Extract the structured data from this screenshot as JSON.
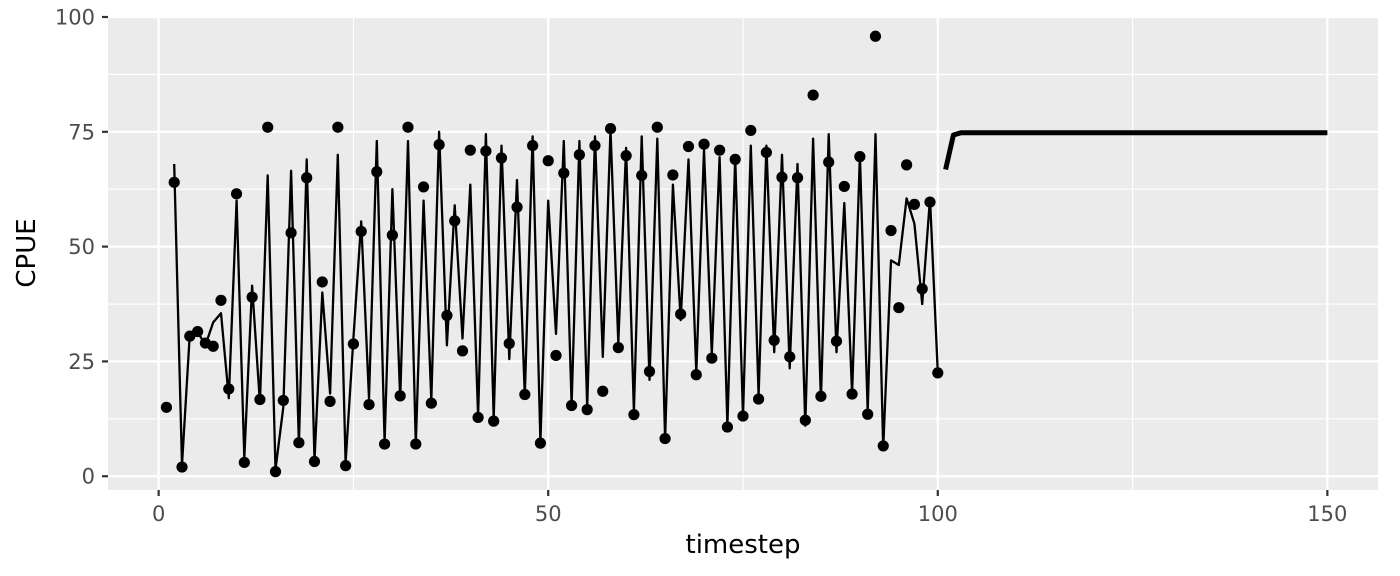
{
  "chart_data": {
    "type": "line",
    "xlabel": "timestep",
    "ylabel": "CPUE",
    "xlim": [
      -6.5,
      156.5
    ],
    "ylim": [
      -3,
      100
    ],
    "x_ticks": [
      0,
      50,
      100,
      150
    ],
    "x_tick_labels": [
      "0",
      "50",
      "100",
      "150"
    ],
    "y_ticks": [
      0,
      25,
      50,
      75,
      100
    ],
    "y_tick_labels": [
      "0",
      "25",
      "50",
      "75",
      "100"
    ],
    "grid": true,
    "panel_background": "#ebebeb",
    "grid_color": "#ffffff",
    "series": [
      {
        "role": "observed points",
        "style": "points",
        "color": "#000000",
        "x": [
          1,
          2,
          3,
          4,
          5,
          6,
          7,
          8,
          9,
          10,
          11,
          12,
          13,
          14,
          15,
          16,
          17,
          18,
          19,
          20,
          21,
          22,
          23,
          24,
          25,
          26,
          27,
          28,
          29,
          30,
          31,
          32,
          33,
          34,
          35,
          36,
          37,
          38,
          39,
          40,
          41,
          42,
          43,
          44,
          45,
          46,
          47,
          48,
          49,
          50,
          51,
          52,
          53,
          54,
          55,
          56,
          57,
          58,
          59,
          60,
          61,
          62,
          63,
          64,
          65,
          66,
          67,
          68,
          69,
          70,
          71,
          72,
          73,
          74,
          75,
          76,
          77,
          78,
          79,
          80,
          81,
          82,
          83,
          84,
          85,
          86,
          87,
          88,
          89,
          90,
          91,
          92,
          93,
          94,
          95,
          96,
          97,
          98,
          99,
          100
        ],
        "y": [
          15,
          64,
          2,
          30.5,
          31.5,
          29,
          28.3,
          38.3,
          19,
          61.5,
          3,
          39,
          16.7,
          76,
          1,
          16.5,
          53,
          7.3,
          65,
          3.2,
          42.3,
          16.3,
          76,
          2.3,
          28.8,
          53.3,
          15.6,
          66.3,
          7,
          52.5,
          17.5,
          76,
          7,
          63,
          15.9,
          72.2,
          35,
          55.6,
          27.3,
          71,
          12.8,
          70.8,
          12,
          69.3,
          28.9,
          58.6,
          17.8,
          72,
          7.2,
          68.7,
          26.3,
          66,
          15.4,
          70,
          14.5,
          72,
          18.5,
          75.7,
          28,
          69.8,
          13.4,
          65.5,
          22.8,
          76,
          8.2,
          65.6,
          35.3,
          71.8,
          22.1,
          72.3,
          25.7,
          71,
          10.7,
          69,
          13.1,
          75.3,
          16.8,
          70.5,
          29.6,
          65.1,
          26,
          65,
          12.2,
          83,
          17.4,
          68.4,
          29.4,
          63.1,
          17.9,
          69.6,
          13.5,
          95.8,
          6.6,
          53.5,
          36.7,
          67.8,
          59.2,
          40.8,
          59.7,
          22.5
        ]
      },
      {
        "role": "fitted line",
        "style": "thin-line",
        "color": "#000000",
        "x": [
          2,
          3,
          4,
          5,
          6,
          7,
          8,
          9,
          10,
          11,
          12,
          13,
          14,
          15,
          16,
          17,
          18,
          19,
          20,
          21,
          22,
          23,
          24,
          25,
          26,
          27,
          28,
          29,
          30,
          31,
          32,
          33,
          34,
          35,
          36,
          37,
          38,
          39,
          40,
          41,
          42,
          43,
          44,
          45,
          46,
          47,
          48,
          49,
          50,
          51,
          52,
          53,
          54,
          55,
          56,
          57,
          58,
          59,
          60,
          61,
          62,
          63,
          64,
          65,
          66,
          67,
          68,
          69,
          70,
          71,
          72,
          73,
          74,
          75,
          76,
          77,
          78,
          79,
          80,
          81,
          82,
          83,
          84,
          85,
          86,
          87,
          88,
          89,
          90,
          91,
          92,
          93,
          94,
          95,
          96,
          97,
          98,
          99,
          100
        ],
        "y": [
          68,
          2.5,
          31,
          31.5,
          28.5,
          33.5,
          35.5,
          17,
          60,
          4,
          41.5,
          16,
          65.5,
          1.5,
          15,
          66.5,
          7,
          69,
          3.5,
          40,
          18,
          70,
          3,
          30,
          55.5,
          17,
          73,
          7.5,
          62.5,
          17,
          73,
          7,
          60,
          16.5,
          75,
          28.5,
          59,
          30,
          63.5,
          13,
          74.5,
          12.5,
          72,
          25.5,
          64.5,
          17.5,
          74,
          7.5,
          60,
          31,
          73,
          15.5,
          73,
          15,
          74,
          26,
          75.5,
          29,
          71.5,
          14,
          74,
          21,
          73.5,
          8,
          63.5,
          34,
          69,
          22.5,
          71,
          26.5,
          69.5,
          11,
          69.5,
          13,
          72,
          17.5,
          72,
          27,
          70,
          23.5,
          68,
          11,
          73.5,
          16.5,
          74.5,
          27,
          59.5,
          18,
          70,
          14,
          74.5,
          6,
          47,
          46,
          60.5,
          55,
          37.5,
          60.5,
          22.5
        ]
      },
      {
        "role": "projection",
        "style": "thick-line",
        "color": "#000000",
        "x": [
          101,
          102,
          103,
          104,
          105,
          110,
          120,
          130,
          140,
          150
        ],
        "y": [
          66.8,
          74.3,
          74.8,
          74.8,
          74.8,
          74.8,
          74.8,
          74.8,
          74.8,
          74.8
        ]
      }
    ]
  }
}
